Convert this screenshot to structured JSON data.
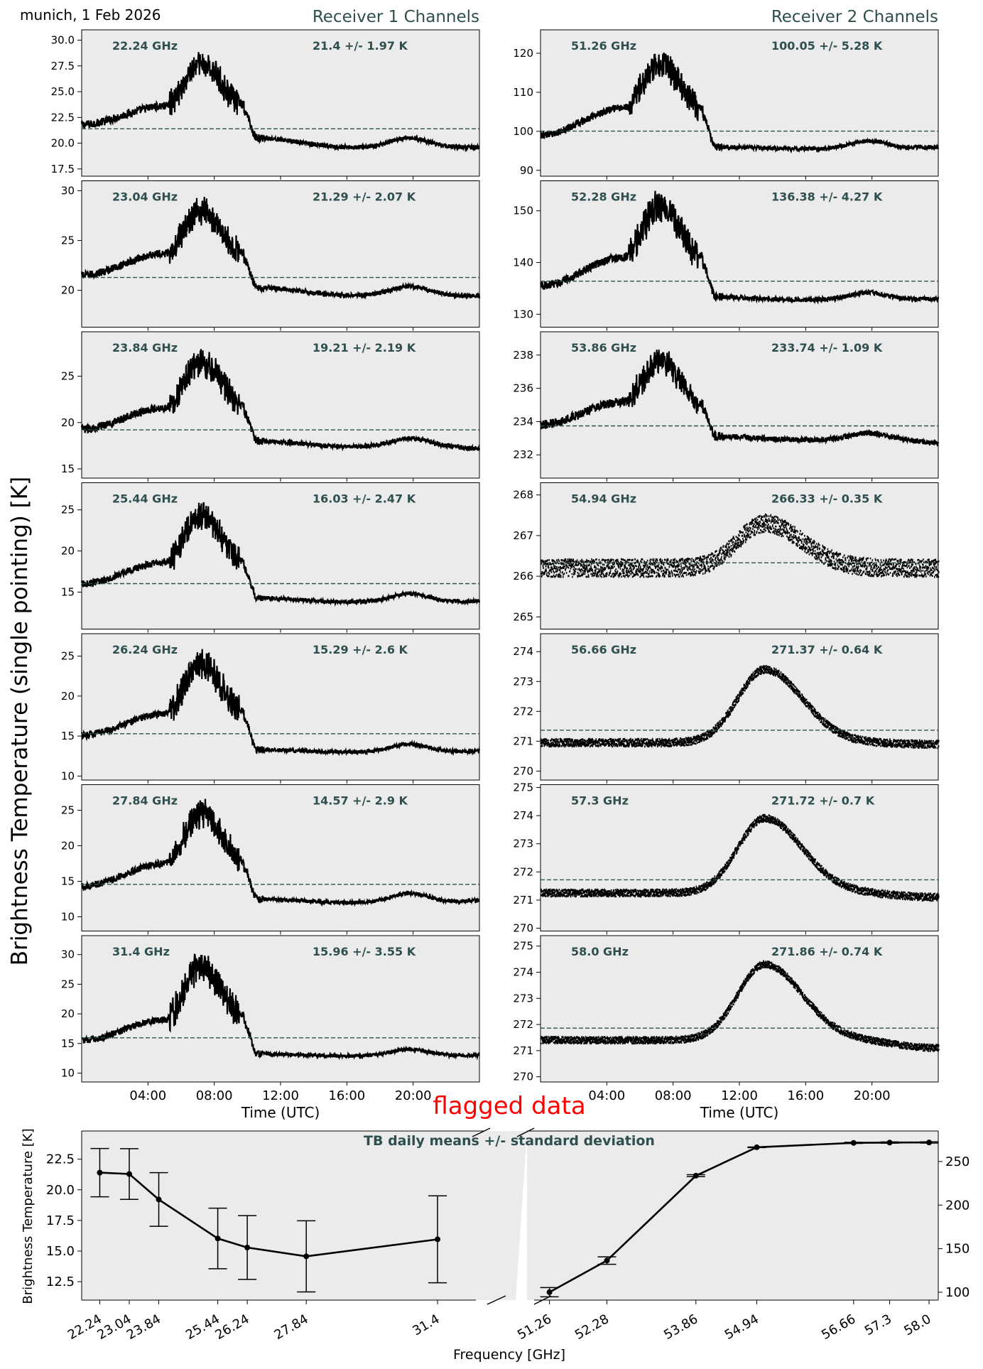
{
  "header": {
    "location_date": "munich, 1 Feb 2026",
    "receiver1_title": "Receiver 1 Channels",
    "receiver2_title": "Receiver 2 Channels",
    "ylabel": "Brightness Temperature (single pointing) [K]",
    "time_xlabel": "Time (UTC)",
    "time_ticks": [
      "04:00",
      "08:00",
      "12:00",
      "16:00",
      "20:00"
    ],
    "flag_text": "flagged data"
  },
  "colors": {
    "panel_bg": "#ebebeb",
    "title_color": "#2f4f4f",
    "line": "#000000",
    "flag": "#ff0000"
  },
  "chart_data": [
    {
      "type": "line",
      "receiver": 1,
      "freq_label": "22.24 GHz",
      "stat_label": "21.4 +/- 1.97 K",
      "mean": 21.4,
      "ylim": [
        16.8,
        31.0
      ],
      "yticks": [
        "17.5",
        "20.0",
        "22.5",
        "25.0",
        "27.5",
        "30.0"
      ],
      "shape": {
        "start": 21.8,
        "pre": 23.6,
        "peak": 27.7,
        "post": 20.5,
        "tail": 19.6,
        "bump": 20.5,
        "end": 19.6,
        "noise": 0.5
      }
    },
    {
      "type": "line",
      "receiver": 1,
      "freq_label": "23.04 GHz",
      "stat_label": "21.29 +/- 2.07 K",
      "mean": 21.29,
      "ylim": [
        16.3,
        31.0
      ],
      "yticks": [
        "20",
        "25",
        "30"
      ],
      "shape": {
        "start": 21.5,
        "pre": 23.7,
        "peak": 28.0,
        "post": 20.3,
        "tail": 19.5,
        "bump": 20.4,
        "end": 19.4,
        "noise": 0.5
      }
    },
    {
      "type": "line",
      "receiver": 1,
      "freq_label": "23.84 GHz",
      "stat_label": "19.21 +/- 2.19 K",
      "mean": 19.21,
      "ylim": [
        14.0,
        29.8
      ],
      "yticks": [
        "15",
        "20",
        "25"
      ],
      "shape": {
        "start": 19.3,
        "pre": 21.6,
        "peak": 26.5,
        "post": 18.0,
        "tail": 17.4,
        "bump": 18.3,
        "end": 17.2,
        "noise": 0.55
      }
    },
    {
      "type": "line",
      "receiver": 1,
      "freq_label": "25.44 GHz",
      "stat_label": "16.03 +/- 2.47 K",
      "mean": 16.03,
      "ylim": [
        10.5,
        28.3
      ],
      "yticks": [
        "15",
        "20",
        "25"
      ],
      "shape": {
        "start": 16.0,
        "pre": 18.6,
        "peak": 24.3,
        "post": 14.3,
        "tail": 13.8,
        "bump": 14.8,
        "end": 13.9,
        "noise": 0.55
      }
    },
    {
      "type": "line",
      "receiver": 1,
      "freq_label": "26.24 GHz",
      "stat_label": "15.29 +/- 2.6 K",
      "mean": 15.29,
      "ylim": [
        9.5,
        27.8
      ],
      "yticks": [
        "10",
        "15",
        "20",
        "25"
      ],
      "shape": {
        "start": 15.1,
        "pre": 17.8,
        "peak": 24.0,
        "post": 13.3,
        "tail": 13.0,
        "bump": 14.0,
        "end": 13.1,
        "noise": 0.55
      }
    },
    {
      "type": "line",
      "receiver": 1,
      "freq_label": "27.84 GHz",
      "stat_label": "14.57 +/- 2.9 K",
      "mean": 14.57,
      "ylim": [
        8.0,
        28.6
      ],
      "yticks": [
        "10",
        "15",
        "20",
        "25"
      ],
      "shape": {
        "start": 14.3,
        "pre": 17.5,
        "peak": 24.5,
        "post": 12.5,
        "tail": 12.0,
        "bump": 13.3,
        "end": 12.3,
        "noise": 0.6
      }
    },
    {
      "type": "line",
      "receiver": 1,
      "freq_label": "31.4 GHz",
      "stat_label": "15.96 +/- 3.55 K",
      "mean": 15.96,
      "ylim": [
        8.5,
        33.2
      ],
      "yticks": [
        "10",
        "15",
        "20",
        "25",
        "30"
      ],
      "shape": {
        "start": 15.5,
        "pre": 19.0,
        "peak": 28.0,
        "post": 13.2,
        "tail": 12.9,
        "bump": 14.0,
        "end": 13.0,
        "noise": 0.7
      }
    },
    {
      "type": "line",
      "receiver": 2,
      "freq_label": "51.26 GHz",
      "stat_label": "100.05 +/- 5.28 K",
      "mean": 100.05,
      "ylim": [
        88.5,
        126.0
      ],
      "yticks": [
        "90",
        "100",
        "110",
        "120"
      ],
      "shape": {
        "start": 99.0,
        "pre": 106.0,
        "peak": 117.5,
        "post": 96.0,
        "tail": 95.5,
        "bump": 97.5,
        "end": 96.0,
        "noise": 1.2
      }
    },
    {
      "type": "line",
      "receiver": 2,
      "freq_label": "52.28 GHz",
      "stat_label": "136.38 +/- 4.27 K",
      "mean": 136.38,
      "ylim": [
        127.5,
        155.8
      ],
      "yticks": [
        "130",
        "140",
        "150"
      ],
      "shape": {
        "start": 135.5,
        "pre": 141.0,
        "peak": 151.0,
        "post": 133.3,
        "tail": 132.8,
        "bump": 134.2,
        "end": 133.0,
        "noise": 1.0
      }
    },
    {
      "type": "line",
      "receiver": 2,
      "freq_label": "53.86 GHz",
      "stat_label": "233.74 +/- 1.09 K",
      "mean": 233.74,
      "ylim": [
        230.6,
        239.4
      ],
      "yticks": [
        "232",
        "234",
        "236",
        "238"
      ],
      "shape": {
        "start": 233.8,
        "pre": 235.2,
        "peak": 237.6,
        "post": 233.1,
        "tail": 232.9,
        "bump": 233.3,
        "end": 232.7,
        "noise": 0.35
      }
    },
    {
      "type": "scatter",
      "receiver": 2,
      "freq_label": "54.94 GHz",
      "stat_label": "266.33 +/- 0.35 K",
      "mean": 266.33,
      "ylim": [
        264.7,
        268.3
      ],
      "yticks": [
        "265",
        "266",
        "267",
        "268"
      ],
      "peak_time_h": 13.5,
      "shape": {
        "base": 266.2,
        "peak": 267.3,
        "end": 266.2,
        "noise": 0.22
      }
    },
    {
      "type": "scatter",
      "receiver": 2,
      "freq_label": "56.66 GHz",
      "stat_label": "271.37 +/- 0.64 K",
      "mean": 271.37,
      "ylim": [
        269.7,
        274.6
      ],
      "yticks": [
        "270",
        "271",
        "272",
        "273",
        "274"
      ],
      "peak_time_h": 13.5,
      "shape": {
        "base": 270.95,
        "peak": 273.4,
        "end": 270.9,
        "noise": 0.13
      }
    },
    {
      "type": "scatter",
      "receiver": 2,
      "freq_label": "57.3 GHz",
      "stat_label": "271.72 +/- 0.7 K",
      "mean": 271.72,
      "ylim": [
        269.9,
        275.1
      ],
      "yticks": [
        "270",
        "271",
        "272",
        "273",
        "274",
        "275"
      ],
      "peak_time_h": 13.5,
      "shape": {
        "base": 271.25,
        "peak": 273.9,
        "end": 271.1,
        "noise": 0.13
      }
    },
    {
      "type": "scatter",
      "receiver": 2,
      "freq_label": "58.0 GHz",
      "stat_label": "271.86 +/- 0.74 K",
      "mean": 271.86,
      "ylim": [
        269.8,
        275.4
      ],
      "yticks": [
        "270",
        "271",
        "272",
        "273",
        "274",
        "275"
      ],
      "peak_time_h": 13.5,
      "shape": {
        "base": 271.4,
        "peak": 274.3,
        "end": 271.1,
        "noise": 0.13
      }
    },
    {
      "type": "line",
      "title": "TB daily means +/- standard deviation",
      "xlabel": "Frequency [GHz]",
      "ylabel": "Brightness Temperature [K]",
      "left": {
        "x": [
          22.24,
          23.04,
          23.84,
          25.44,
          26.24,
          27.84,
          31.4
        ],
        "x_labels": [
          "22.24",
          "23.04",
          "23.84",
          "25.44",
          "26.24",
          "27.84",
          "31.4"
        ],
        "y": [
          21.4,
          21.29,
          19.21,
          16.03,
          15.29,
          14.57,
          15.96
        ],
        "err": [
          1.97,
          2.07,
          2.19,
          2.47,
          2.6,
          2.9,
          3.55
        ],
        "xlim": [
          22.0,
          31.9
        ],
        "ylim": [
          11.0,
          24.8
        ],
        "yticks": [
          "12.5",
          "15.0",
          "17.5",
          "20.0",
          "22.5"
        ]
      },
      "right": {
        "x": [
          51.26,
          52.28,
          53.86,
          54.94,
          56.66,
          57.3,
          58.0
        ],
        "x_labels": [
          "51.26",
          "52.28",
          "53.86",
          "54.94",
          "56.66",
          "57.3",
          "58.0"
        ],
        "y": [
          100.05,
          136.38,
          233.74,
          266.33,
          271.37,
          271.72,
          271.86
        ],
        "err": [
          5.28,
          4.27,
          1.09,
          0.35,
          0.64,
          0.7,
          0.74
        ],
        "xlim": [
          51.0,
          58.1
        ],
        "ylim": [
          91.0,
          285.0
        ],
        "yticks": [
          "100",
          "150",
          "200",
          "250"
        ]
      }
    }
  ]
}
